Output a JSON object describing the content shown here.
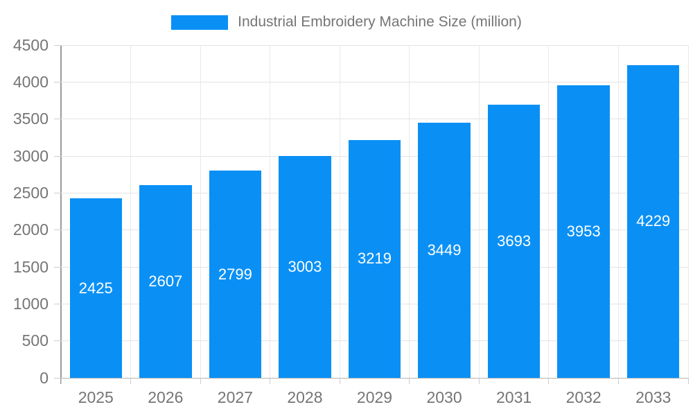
{
  "legend": {
    "label": "Industrial Embroidery Machine Size (million)"
  },
  "chart_data": {
    "type": "bar",
    "title": "Industrial Embroidery Machine Size (million)",
    "categories": [
      "2025",
      "2026",
      "2027",
      "2028",
      "2029",
      "2030",
      "2031",
      "2032",
      "2033"
    ],
    "values": [
      2425,
      2607,
      2799,
      3003,
      3219,
      3449,
      3693,
      3953,
      4229
    ],
    "xlabel": "",
    "ylabel": "",
    "ylim": [
      0,
      4500
    ],
    "ytick_step": 500,
    "ytick_labels": [
      "0",
      "500",
      "1000",
      "1500",
      "2000",
      "2500",
      "3000",
      "3500",
      "4000",
      "4500"
    ],
    "grid": true,
    "legend_position": "top",
    "bar_color": "#0a90f5",
    "value_label_color": "#ffffff",
    "axis_text_color": "#757575"
  }
}
